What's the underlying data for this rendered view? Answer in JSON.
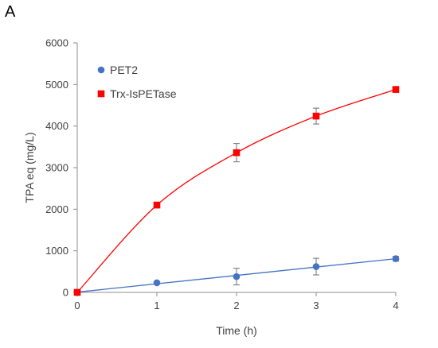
{
  "panel_label": "A",
  "chart_data": {
    "type": "scatter",
    "title": "",
    "xlabel": "Time (h)",
    "ylabel": "TPA eq (mg/L)",
    "xlim": [
      0,
      4
    ],
    "ylim": [
      0,
      6000
    ],
    "xticks": [
      0,
      1,
      2,
      3,
      4
    ],
    "yticks": [
      0,
      1000,
      2000,
      3000,
      4000,
      5000,
      6000
    ],
    "grid": false,
    "legend_position": "top-left",
    "series": [
      {
        "name": "PET2",
        "marker": "circle",
        "color": "#4472C4",
        "x": [
          0,
          1,
          2,
          3,
          4
        ],
        "y": [
          0,
          230,
          380,
          620,
          810
        ],
        "error": [
          0,
          30,
          200,
          200,
          60
        ],
        "fit": "linear"
      },
      {
        "name": "Trx-IsPETase",
        "marker": "square",
        "color": "#FF0000",
        "x": [
          0,
          1,
          2,
          3,
          4
        ],
        "y": [
          0,
          2100,
          3360,
          4240,
          4880
        ],
        "error": [
          0,
          40,
          220,
          190,
          40
        ],
        "fit": "smooth"
      }
    ]
  }
}
